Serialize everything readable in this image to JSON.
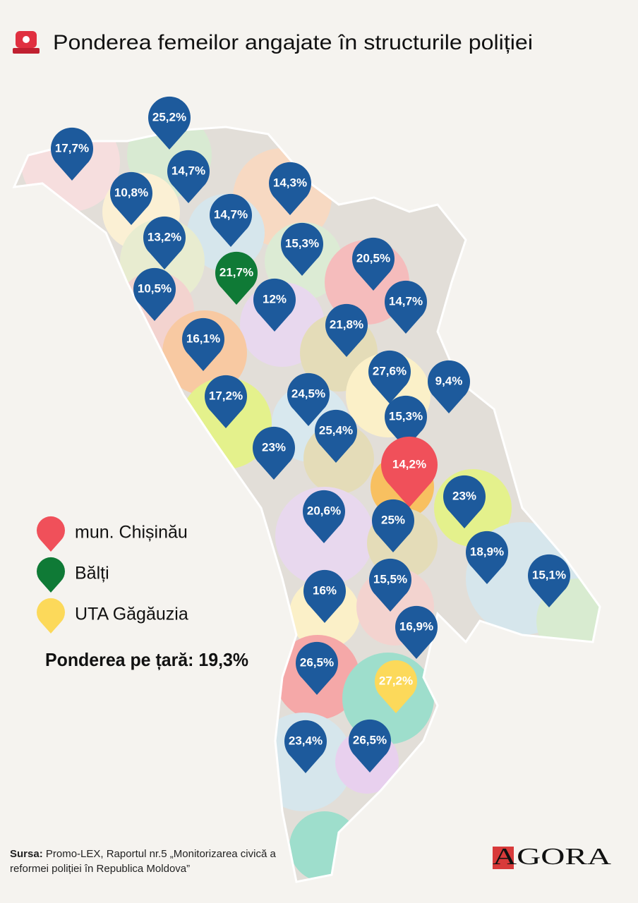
{
  "header": {
    "title": "Ponderea femeilor angajate în structurile poliției"
  },
  "pins": [
    "25,2%",
    "17,7%",
    "14,7%",
    "10,8%",
    "14,3%",
    "14,7%",
    "13,2%",
    "15,3%",
    "20,5%",
    "21,7%",
    "10,5%",
    "12%",
    "14,7%",
    "21,8%",
    "16,1%",
    "27,6%",
    "9,4%",
    "17,2%",
    "24,5%",
    "15,3%",
    "25,4%",
    "23%",
    "14,2%",
    "23%",
    "20,6%",
    "25%",
    "18,9%",
    "15,1%",
    "16%",
    "15,5%",
    "16,9%",
    "26,5%",
    "27,2%",
    "23,4%",
    "26,5%"
  ],
  "legend": [
    "mun. Chișinău",
    "Bălți",
    "UTA Găgăuzia"
  ],
  "national_share": "Ponderea pe țară: 19,3%",
  "source": {
    "label": "Sursa:",
    "text": "Promo-LEX, Raportul nr.5 „Monitorizarea civică a reformei poliției în Republica Moldova”"
  },
  "logo": "AGORA"
}
